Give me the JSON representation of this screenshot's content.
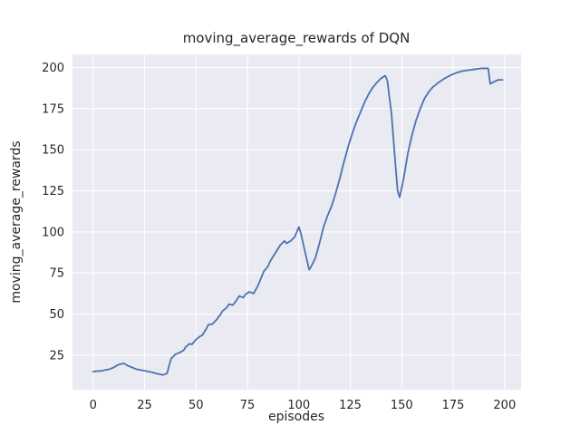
{
  "figure": {
    "background": "#ffffff",
    "axes_background": "#eaeaf2",
    "grid_color": "#ffffff",
    "line_color": "#4c72b0",
    "text_color": "#262626"
  },
  "chart_data": {
    "type": "line",
    "title": "moving_average_rewards of DQN",
    "xlabel": "episodes",
    "ylabel": "moving_average_rewards",
    "xlim": [
      -10,
      208
    ],
    "ylim": [
      4,
      208
    ],
    "xticks": [
      0,
      25,
      50,
      75,
      100,
      125,
      150,
      175,
      200
    ],
    "yticks": [
      25,
      50,
      75,
      100,
      125,
      150,
      175,
      200
    ],
    "grid": true,
    "legend_position": "none",
    "series": [
      {
        "name": "moving_average_rewards",
        "x": [
          0,
          2,
          4,
          6,
          8,
          10,
          12,
          13,
          15,
          17,
          19,
          21,
          23,
          25,
          27,
          29,
          31,
          33,
          34,
          35,
          36,
          37,
          38,
          40,
          42,
          44,
          45,
          47,
          48,
          50,
          52,
          53,
          55,
          56,
          58,
          60,
          62,
          63,
          65,
          66,
          68,
          70,
          71,
          73,
          74,
          76,
          78,
          80,
          82,
          83,
          85,
          86,
          88,
          89,
          91,
          93,
          94,
          96,
          98,
          100,
          101,
          103,
          105,
          106,
          108,
          110,
          112,
          114,
          116,
          118,
          120,
          122,
          124,
          126,
          128,
          130,
          132,
          134,
          136,
          138,
          140,
          142,
          143,
          145,
          147,
          148,
          149,
          151,
          153,
          155,
          157,
          159,
          161,
          163,
          165,
          168,
          171,
          174,
          177,
          180,
          183,
          186,
          189,
          192,
          193,
          195,
          197,
          199
        ],
        "y": [
          15,
          15.3,
          15.4,
          16,
          16.5,
          17.5,
          19,
          19.5,
          20,
          18.5,
          17.5,
          16.5,
          16,
          15.5,
          15,
          14.5,
          13.8,
          13.2,
          13,
          13.4,
          14,
          19,
          23,
          25.5,
          26.5,
          28,
          30,
          32,
          31.5,
          34.5,
          36.5,
          37,
          41,
          43.5,
          44,
          46.5,
          50,
          52,
          54,
          56,
          55.5,
          59,
          61,
          60,
          62,
          63.5,
          62.5,
          67,
          73,
          76,
          79,
          82,
          86,
          88,
          92,
          94.5,
          93,
          94.5,
          97,
          103,
          99,
          88,
          77,
          79,
          84,
          93,
          103,
          110,
          116,
          124,
          133,
          143,
          152,
          160,
          167,
          173,
          179,
          184,
          188,
          191,
          193.5,
          195,
          192,
          172,
          140,
          125,
          121,
          133,
          148,
          159,
          168,
          175,
          181,
          185,
          188,
          191,
          193.5,
          195.5,
          197,
          198,
          198.5,
          199,
          199.5,
          199.5,
          190,
          191.5,
          192.5,
          192.5
        ]
      }
    ]
  }
}
